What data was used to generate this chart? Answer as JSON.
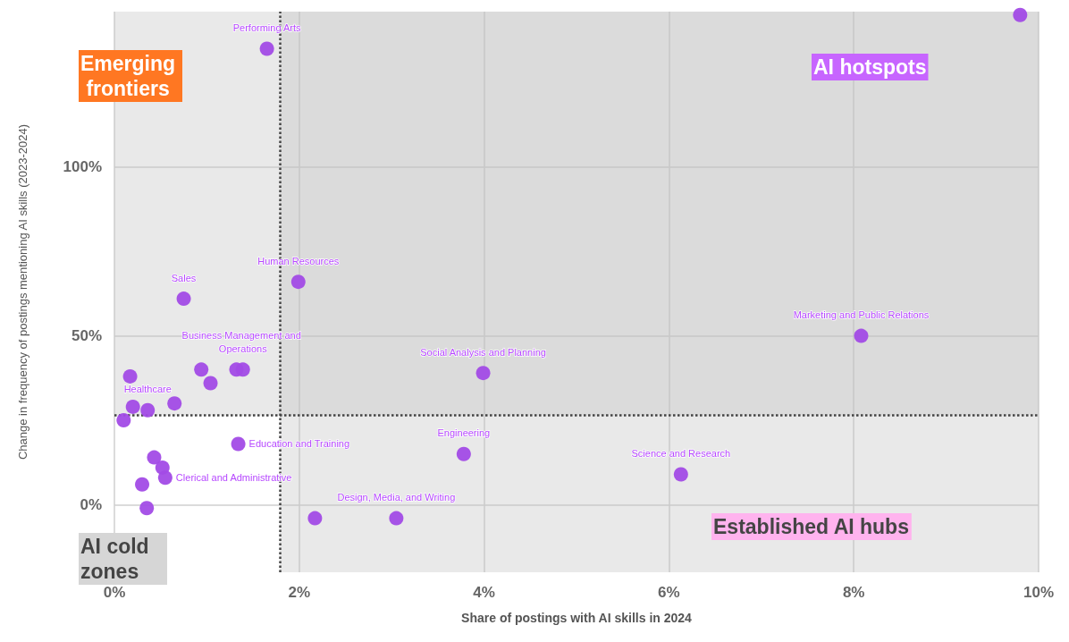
{
  "chart_data": {
    "type": "scatter",
    "xlabel": "Share of postings with AI skills in 2024",
    "ylabel": "Change in frequency of postings mentioning AI skills (2023-2024)",
    "xlim": [
      0,
      10
    ],
    "ylim": [
      -20,
      146
    ],
    "xticks": [
      {
        "value": 0,
        "label": "0%"
      },
      {
        "value": 2,
        "label": "2%"
      },
      {
        "value": 4,
        "label": "4%"
      },
      {
        "value": 6,
        "label": "6%"
      },
      {
        "value": 8,
        "label": "8%"
      },
      {
        "value": 10,
        "label": "10%"
      }
    ],
    "yticks": [
      {
        "value": 0,
        "label": "0%"
      },
      {
        "value": 50,
        "label": "50%"
      },
      {
        "value": 100,
        "label": "100%"
      }
    ],
    "grid": true,
    "marker": "circle",
    "series": [
      {
        "color": "#a24be6",
        "x": [
          1.65,
          0.75,
          1.99,
          8.08,
          3.99,
          3.78,
          6.13,
          2.17,
          3.05,
          1.32,
          1.39,
          0.94,
          1.04,
          0.17,
          0.2,
          0.36,
          0.65,
          0.1,
          1.34,
          0.43,
          0.52,
          0.55,
          0.3,
          0.35,
          9.8
        ],
        "values": [
          135,
          61,
          66,
          50,
          39,
          15,
          9,
          -4,
          -4,
          40,
          40,
          40,
          36,
          38,
          29,
          28,
          30,
          25,
          18,
          14,
          11,
          8,
          6,
          -1,
          145
        ],
        "value_labels": [
          "Performing Arts",
          "Sales",
          "Human Resources",
          "Marketing and Public Relations",
          "Social Analysis and Planning",
          "Engineering",
          "Science and Research",
          null,
          "Design, Media, and Writing",
          null,
          "Business Management and Operations",
          null,
          null,
          null,
          null,
          "Healthcare",
          null,
          null,
          "Education and Training",
          null,
          null,
          "Clerical and Administrative",
          null,
          null,
          null
        ]
      }
    ],
    "bands": [
      {
        "axis": "x",
        "from": 1.79,
        "to": 10,
        "color": "#c4c4c4"
      },
      {
        "axis": "y",
        "from": 26.4,
        "to": 146,
        "color": "#c4c4c4"
      }
    ],
    "ref_lines": [
      {
        "axis": "x",
        "value": 1.79,
        "line_style": "dotted",
        "color": "#444444"
      },
      {
        "axis": "y",
        "value": 26.4,
        "line_style": "dotted",
        "color": "#444444"
      }
    ],
    "annotations": [
      "Emerging frontiers",
      "AI hotspots",
      "Established AI hubs",
      "AI cold zones"
    ]
  }
}
